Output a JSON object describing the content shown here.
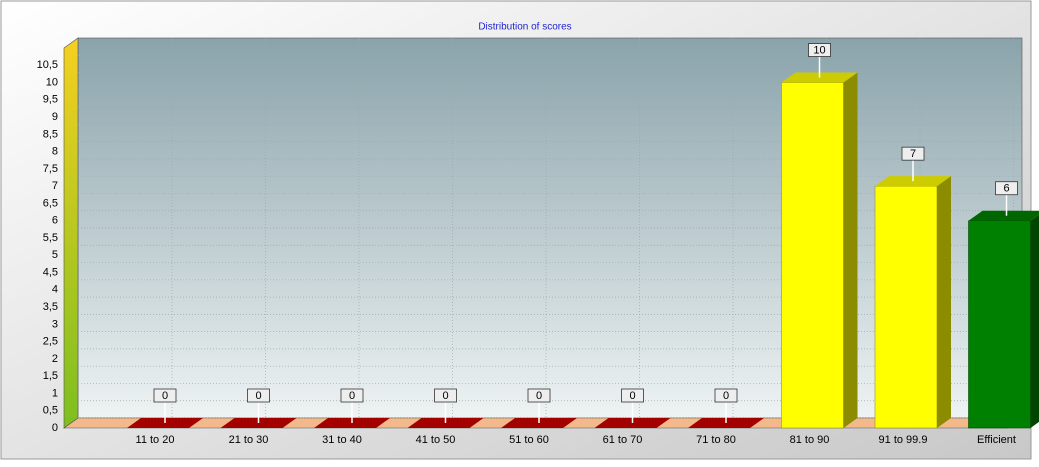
{
  "chart_data": {
    "type": "bar3d",
    "title": "Distribution of scores",
    "categories": [
      "11 to 20",
      "21 to 30",
      "31 to 40",
      "41 to 50",
      "51 to 60",
      "61 to 70",
      "71 to 80",
      "81 to 90",
      "91 to 99.9",
      "Efficient"
    ],
    "values": [
      0,
      0,
      0,
      0,
      0,
      0,
      0,
      10,
      7,
      6
    ],
    "colors": [
      "#cc0000",
      "#cc0000",
      "#cc0000",
      "#cc0000",
      "#cc0000",
      "#cc0000",
      "#cc0000",
      "#ffff00",
      "#ffff00",
      "#008000"
    ],
    "ylim": [
      0,
      11
    ],
    "yticks": [
      0,
      {
        "value": 0.5,
        "label": "0,5"
      },
      1,
      {
        "value": 1.5,
        "label": "1,5"
      },
      2,
      {
        "value": 2.5,
        "label": "2,5"
      },
      3,
      {
        "value": 3.5,
        "label": "3,5"
      },
      4,
      {
        "value": 4.5,
        "label": "4,5"
      },
      5,
      {
        "value": 5.5,
        "label": "5,5"
      },
      6,
      {
        "value": 6.5,
        "label": "6,5"
      },
      7,
      {
        "value": 7.5,
        "label": "7,5"
      },
      8,
      {
        "value": 8.5,
        "label": "8,5"
      },
      9,
      {
        "value": 9.5,
        "label": "9,5"
      },
      10,
      {
        "value": 10.5,
        "label": "10,5"
      }
    ],
    "grid": true
  }
}
